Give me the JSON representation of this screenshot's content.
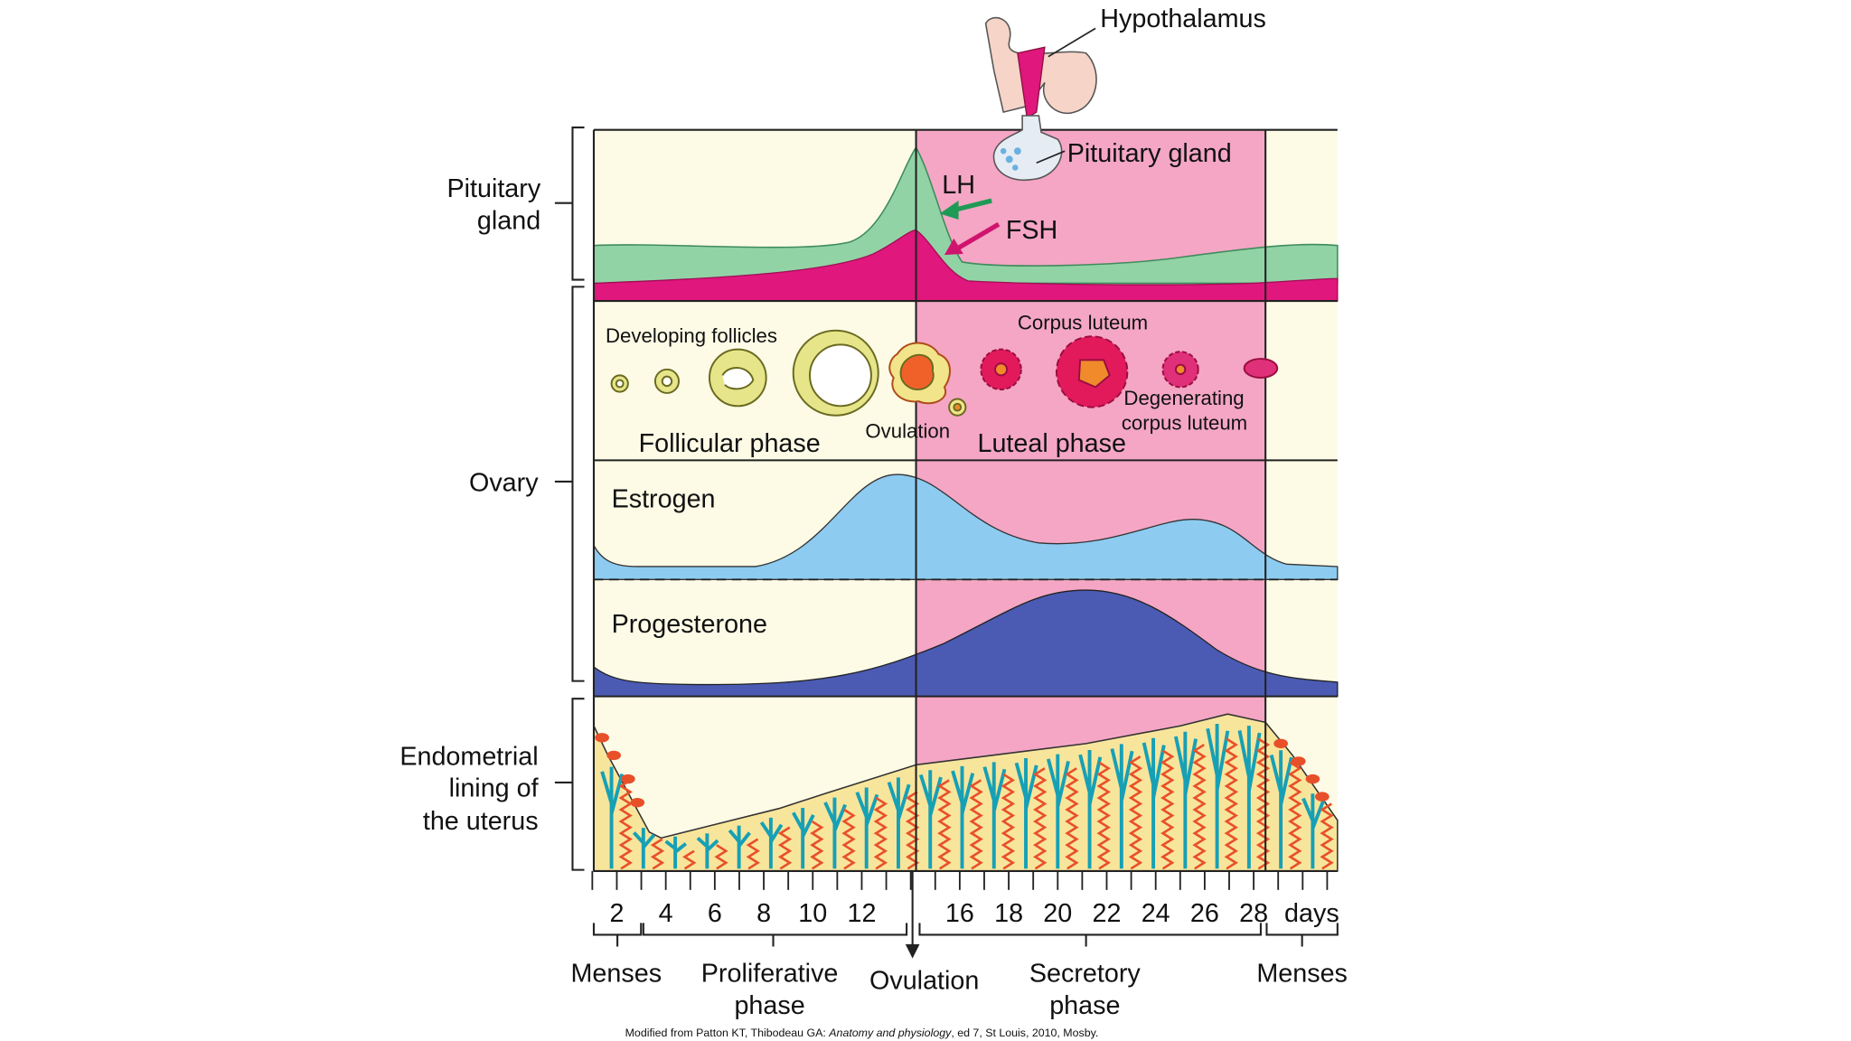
{
  "top_illustration": {
    "hypothalamus": "Hypothalamus",
    "pituitary_gland": "Pituitary gland"
  },
  "hormones": {
    "lh": "LH",
    "fsh": "FSH",
    "estrogen": "Estrogen",
    "progesterone": "Progesterone"
  },
  "sections": [
    {
      "label": [
        "Pituitary",
        "gland"
      ]
    },
    {
      "label": [
        "Ovary"
      ]
    },
    {
      "label": [
        "Endometrial",
        "lining of",
        "the uterus"
      ]
    }
  ],
  "ovary_labels": {
    "developing_follicles": "Developing follicles",
    "corpus_luteum": "Corpus luteum",
    "ovulation": "Ovulation",
    "degenerating_corpus_luteum": [
      "Degenerating",
      "corpus luteum"
    ],
    "follicular_phase": "Follicular phase",
    "luteal_phase": "Luteal phase"
  },
  "day_axis": {
    "ticks": [
      2,
      4,
      6,
      8,
      10,
      12,
      16,
      18,
      20,
      22,
      24,
      26,
      28
    ],
    "unit": "days"
  },
  "phases": [
    {
      "label": [
        "Menses"
      ]
    },
    {
      "label": [
        "Proliferative",
        "phase"
      ]
    },
    {
      "label": [
        "Ovulation"
      ]
    },
    {
      "label": [
        "Secretory",
        "phase"
      ]
    },
    {
      "label": [
        "Menses"
      ]
    }
  ],
  "citation": {
    "before": "Modified from Patton KT, Thibodeau GA: ",
    "title": "Anatomy and physiology",
    "after": ", ed 7, St Louis, 2010, Mosby."
  }
}
